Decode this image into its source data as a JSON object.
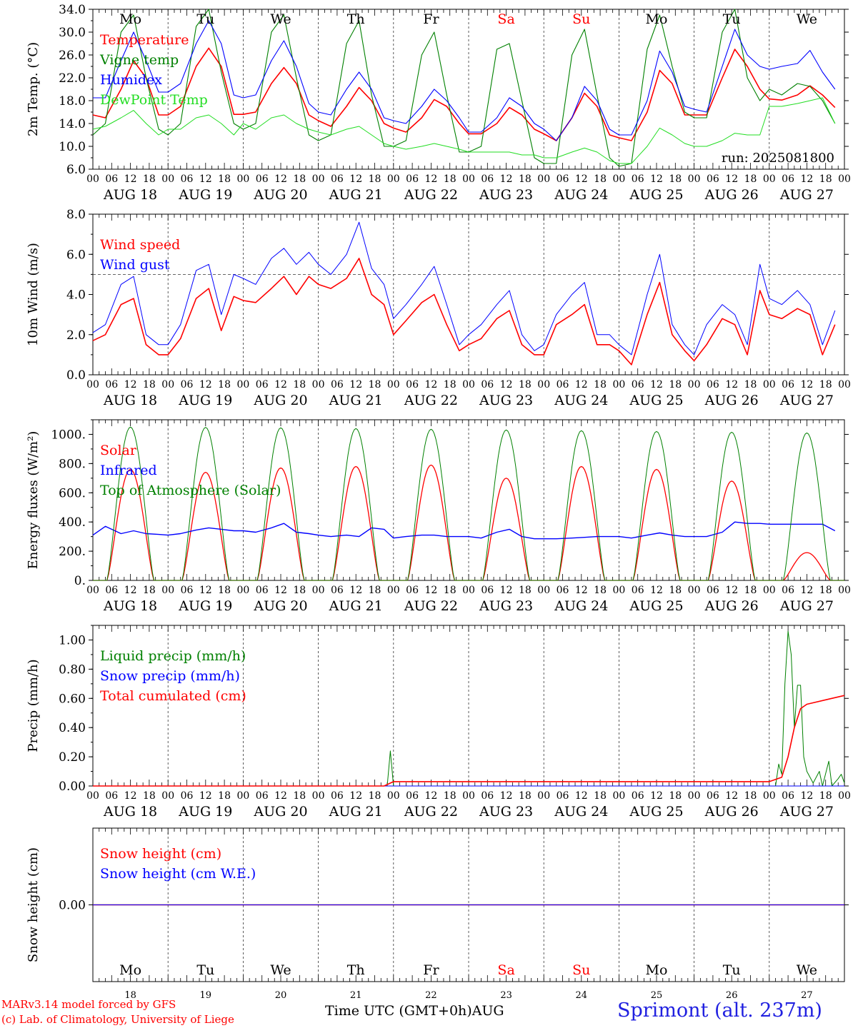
{
  "colors": {
    "red": "#ff0000",
    "darkgreen": "#008000",
    "blue": "#0000ff",
    "lightgreen": "#22dd22",
    "weekend": "#ff0000",
    "axis": "#000000"
  },
  "days": [
    {
      "abbr": "Mo",
      "date": "AUG 18",
      "num": "18",
      "weekend": false
    },
    {
      "abbr": "Tu",
      "date": "AUG 19",
      "num": "19",
      "weekend": false
    },
    {
      "abbr": "We",
      "date": "AUG 20",
      "num": "20",
      "weekend": false
    },
    {
      "abbr": "Th",
      "date": "AUG 21",
      "num": "21",
      "weekend": false
    },
    {
      "abbr": "Fr",
      "date": "AUG 22",
      "num": "22",
      "weekend": false
    },
    {
      "abbr": "Sa",
      "date": "AUG 23",
      "num": "23",
      "weekend": true
    },
    {
      "abbr": "Su",
      "date": "AUG 24",
      "num": "24",
      "weekend": true
    },
    {
      "abbr": "Mo",
      "date": "AUG 25",
      "num": "25",
      "weekend": false
    },
    {
      "abbr": "Tu",
      "date": "AUG 26",
      "num": "26",
      "weekend": false
    },
    {
      "abbr": "We",
      "date": "AUG 27",
      "num": "27",
      "weekend": false
    }
  ],
  "hour_labels": [
    "00",
    "06",
    "12",
    "18"
  ],
  "final_hour_label": "00",
  "footer": {
    "credit_line1": "MARv3.14 model forced by GFS",
    "credit_line2": "(c) Lab. of Climatology, University of Liege",
    "xaxis_title": "Time UTC (GMT+0h)AUG",
    "station": "Sprimont (alt. 237m)"
  },
  "chart_data": [
    {
      "type": "line",
      "ylabel": "2m Temp. (°C)",
      "ylim": [
        6,
        34
      ],
      "yticks": [
        "6.0",
        "10.0",
        "14.0",
        "18.0",
        "22.0",
        "26.0",
        "30.0",
        "34.0"
      ],
      "ytick_values": [
        6,
        10,
        14,
        18,
        22,
        26,
        30,
        34
      ],
      "run_label": "run: 2025081800",
      "show_day_abbr_top": true,
      "series": [
        {
          "name": "Temperature",
          "color": "red",
          "width": 1.6,
          "days": [
            [
              15.5,
              15,
              20,
              25,
              22,
              15.5
            ],
            [
              15.5,
              17,
              24,
              27.2,
              24,
              15.6
            ],
            [
              15.6,
              16,
              21,
              23.8,
              21,
              15.5
            ],
            [
              14.5,
              13.5,
              17,
              20.3,
              18,
              14
            ],
            [
              13.2,
              12.5,
              15,
              18.2,
              17,
              14
            ],
            [
              12.2,
              12.2,
              14,
              16.8,
              15.5,
              13
            ],
            [
              12.2,
              11,
              15,
              19.3,
              17,
              12
            ],
            [
              11.5,
              11,
              16,
              23.3,
              21,
              15.5
            ],
            [
              15.5,
              15.5,
              22,
              27,
              24,
              20
            ],
            [
              18.3,
              18.1,
              19,
              20.6,
              19,
              16.8
            ]
          ]
        },
        {
          "name": "Vigne temp",
          "color": "darkgreen",
          "width": 1.1,
          "days": [
            [
              12,
              14,
              30,
              33,
              22,
              13
            ],
            [
              12,
              14,
              31,
              34,
              23,
              14
            ],
            [
              13,
              14,
              30,
              33,
              22,
              12
            ],
            [
              11,
              12,
              28,
              32,
              19,
              10
            ],
            [
              10,
              11,
              26,
              30,
              19,
              9
            ],
            [
              9,
              10,
              27,
              28,
              18,
              8
            ],
            [
              7,
              7,
              26,
              30.5,
              19,
              8
            ],
            [
              6.5,
              7,
              27,
              33,
              24,
              16
            ],
            [
              15,
              15,
              30,
              34,
              22,
              18
            ],
            [
              20,
              19,
              21,
              20.5,
              18,
              14
            ]
          ]
        },
        {
          "name": "Humidex",
          "color": "blue",
          "width": 1.1,
          "days": [
            [
              18.5,
              18.5,
              25,
              30,
              25,
              19.5
            ],
            [
              19.5,
              21,
              28,
              32,
              28,
              19
            ],
            [
              18.5,
              19,
              25,
              28.5,
              24,
              17.5
            ],
            [
              16,
              15.5,
              20,
              23,
              20,
              15
            ],
            [
              14.5,
              14,
              17,
              20,
              18,
              15
            ],
            [
              12.5,
              12.5,
              15,
              18.5,
              17,
              14
            ],
            [
              13,
              11,
              15,
              20.5,
              18,
              13
            ],
            [
              12,
              12,
              18,
              26.7,
              23,
              17
            ],
            [
              16.5,
              16,
              24,
              30.5,
              26,
              24
            ],
            [
              23.5,
              24,
              24.5,
              26.8,
              23,
              20
            ]
          ]
        },
        {
          "name": "DewPoint Temp",
          "color": "lightgreen",
          "width": 1.0,
          "days": [
            [
              13,
              13.5,
              15,
              16.3,
              14,
              12
            ],
            [
              13,
              13,
              15,
              15.5,
              14,
              12
            ],
            [
              14,
              13,
              15,
              15.5,
              14,
              13
            ],
            [
              12.5,
              12,
              13,
              13.5,
              12,
              10.5
            ],
            [
              10,
              9.5,
              10,
              10.5,
              10,
              9.5
            ],
            [
              9,
              9,
              9,
              9,
              8.5,
              8.5
            ],
            [
              8,
              8,
              9,
              9.7,
              9,
              7.5
            ],
            [
              7,
              7,
              10,
              13.2,
              12,
              10.5
            ],
            [
              10,
              10,
              11,
              12.3,
              12,
              12
            ],
            [
              17,
              17,
              17.5,
              18,
              18.5,
              14
            ]
          ]
        }
      ]
    },
    {
      "type": "line",
      "ylabel": "10m Wind (m/s)",
      "ylim": [
        0,
        8
      ],
      "yticks": [
        "0.0",
        "2.0",
        "4.0",
        "6.0",
        "8.0"
      ],
      "ytick_values": [
        0,
        2,
        4,
        6,
        8
      ],
      "reference_line": 5,
      "series": [
        {
          "name": "Wind speed",
          "color": "red",
          "width": 1.6,
          "days": [
            [
              1.7,
              2,
              3.5,
              3.8,
              1.5,
              1.0
            ],
            [
              1.0,
              1.8,
              3.8,
              4.3,
              2.2,
              3.9
            ],
            [
              3.7,
              3.6,
              4.3,
              4.9,
              4.0,
              4.9
            ],
            [
              4.5,
              4.3,
              4.8,
              5.8,
              4.0,
              3.5
            ],
            [
              2.0,
              2.7,
              3.6,
              4.0,
              2.5,
              1.2
            ],
            [
              1.5,
              1.8,
              2.8,
              3.2,
              1.5,
              1.0
            ],
            [
              1.0,
              2.5,
              3.0,
              3.5,
              1.5,
              1.5
            ],
            [
              1.2,
              0.5,
              3.0,
              4.6,
              2.0,
              1.2
            ],
            [
              0.7,
              1.5,
              2.8,
              2.5,
              1.0,
              4.2
            ],
            [
              3.0,
              2.8,
              3.3,
              3.0,
              1.0,
              2.5
            ]
          ]
        },
        {
          "name": "Wind gust",
          "color": "blue",
          "width": 1.0,
          "days": [
            [
              2.1,
              2.5,
              4.5,
              4.9,
              2.0,
              1.5
            ],
            [
              1.5,
              2.5,
              5.2,
              5.5,
              3.0,
              5.0
            ],
            [
              4.8,
              4.5,
              5.8,
              6.3,
              5.5,
              6.1
            ],
            [
              5.5,
              5.0,
              6.0,
              7.6,
              5.3,
              4.5
            ],
            [
              2.8,
              3.5,
              4.5,
              5.4,
              3.5,
              1.5
            ],
            [
              2.0,
              2.5,
              3.5,
              4.2,
              2.0,
              1.2
            ],
            [
              1.5,
              3.0,
              4.0,
              4.6,
              2.0,
              2.0
            ],
            [
              1.5,
              1.0,
              4.0,
              6.0,
              2.5,
              1.5
            ],
            [
              1.0,
              2.5,
              3.5,
              3.0,
              1.5,
              5.5
            ],
            [
              3.8,
              3.5,
              4.2,
              3.5,
              1.5,
              3.2
            ]
          ]
        }
      ]
    },
    {
      "type": "line",
      "ylabel": "Energy fluxes (W/m²)",
      "ylim": [
        0,
        1100
      ],
      "yticks": [
        "0.",
        "200.",
        "400.",
        "600.",
        "800.",
        "1000."
      ],
      "ytick_values": [
        0,
        200,
        400,
        600,
        800,
        1000
      ],
      "series": [
        {
          "name": "Solar",
          "color": "red",
          "width": 1.3,
          "diurnal": true,
          "peaks": [
            760,
            740,
            770,
            780,
            790,
            700,
            780,
            760,
            680,
            190
          ]
        },
        {
          "name": "Infrared",
          "color": "blue",
          "width": 1.4,
          "days": [
            [
              310,
              370,
              320,
              340,
              320,
              315
            ],
            [
              310,
              320,
              345,
              360,
              350,
              340
            ],
            [
              340,
              330,
              360,
              390,
              330,
              320
            ],
            [
              310,
              300,
              310,
              300,
              360,
              350
            ],
            [
              290,
              300,
              310,
              310,
              300,
              300
            ],
            [
              300,
              290,
              330,
              350,
              300,
              285
            ],
            [
              285,
              285,
              290,
              295,
              300,
              300
            ],
            [
              300,
              290,
              310,
              325,
              310,
              300
            ],
            [
              300,
              300,
              330,
              400,
              390,
              390
            ],
            [
              385,
              385,
              385,
              385,
              385,
              340
            ]
          ]
        },
        {
          "name": "Top of Atmosphere (Solar)",
          "color": "darkgreen",
          "width": 1.0,
          "diurnal": true,
          "peaks": [
            1050,
            1048,
            1045,
            1040,
            1035,
            1030,
            1025,
            1020,
            1015,
            1010
          ]
        }
      ]
    },
    {
      "type": "line",
      "ylabel": "Precip (mm/h)",
      "ylim": [
        0,
        1.1
      ],
      "yticks": [
        "0.00",
        "0.20",
        "0.40",
        "0.60",
        "0.80",
        "1.00"
      ],
      "ytick_values": [
        0,
        0.2,
        0.4,
        0.6,
        0.8,
        1.0
      ],
      "series": [
        {
          "name": "Liquid precip (mm/h)",
          "color": "darkgreen",
          "width": 1.0,
          "points": [
            [
              0,
              0
            ],
            [
              94,
              0
            ],
            [
              95,
              0.24
            ],
            [
              96,
              0
            ],
            [
              218,
              0
            ],
            [
              219,
              0.15
            ],
            [
              220,
              0.08
            ],
            [
              221,
              0.7
            ],
            [
              222,
              1.06
            ],
            [
              223,
              0.9
            ],
            [
              224,
              0.4
            ],
            [
              225,
              0.69
            ],
            [
              226,
              0.69
            ],
            [
              227,
              0.2
            ],
            [
              228,
              0.1
            ],
            [
              230,
              0.02
            ],
            [
              232,
              0.1
            ],
            [
              233,
              0.0
            ],
            [
              235,
              0.17
            ],
            [
              236,
              0.0
            ],
            [
              238,
              0.05
            ],
            [
              239,
              0.08
            ],
            [
              240,
              0.02
            ]
          ]
        },
        {
          "name": "Snow precip (mm/h)",
          "color": "blue",
          "width": 1.0,
          "points": [
            [
              0,
              0
            ],
            [
              240,
              0
            ]
          ]
        },
        {
          "name": "Total cumulated (cm)",
          "color": "red",
          "width": 1.6,
          "points": [
            [
              0,
              0
            ],
            [
              93,
              0
            ],
            [
              96,
              0.03
            ],
            [
              216,
              0.03
            ],
            [
              220,
              0.06
            ],
            [
              222,
              0.2
            ],
            [
              224,
              0.4
            ],
            [
              226,
              0.53
            ],
            [
              228,
              0.56
            ],
            [
              234,
              0.59
            ],
            [
              240,
              0.62
            ]
          ]
        }
      ]
    },
    {
      "type": "line",
      "ylabel": "Snow height (cm)",
      "ylim": [
        -1,
        1
      ],
      "yticks": [
        "0.00"
      ],
      "ytick_values": [
        0
      ],
      "show_day_abbr_bottom": true,
      "series": [
        {
          "name": "Snow height (cm)",
          "color": "red",
          "width": 1.5,
          "points": [
            [
              0,
              0
            ],
            [
              240,
              0
            ]
          ]
        },
        {
          "name": "Snow height (cm W.E.)",
          "color": "blue",
          "width": 1.0,
          "points": [
            [
              0,
              0
            ],
            [
              240,
              0
            ]
          ]
        }
      ]
    }
  ]
}
